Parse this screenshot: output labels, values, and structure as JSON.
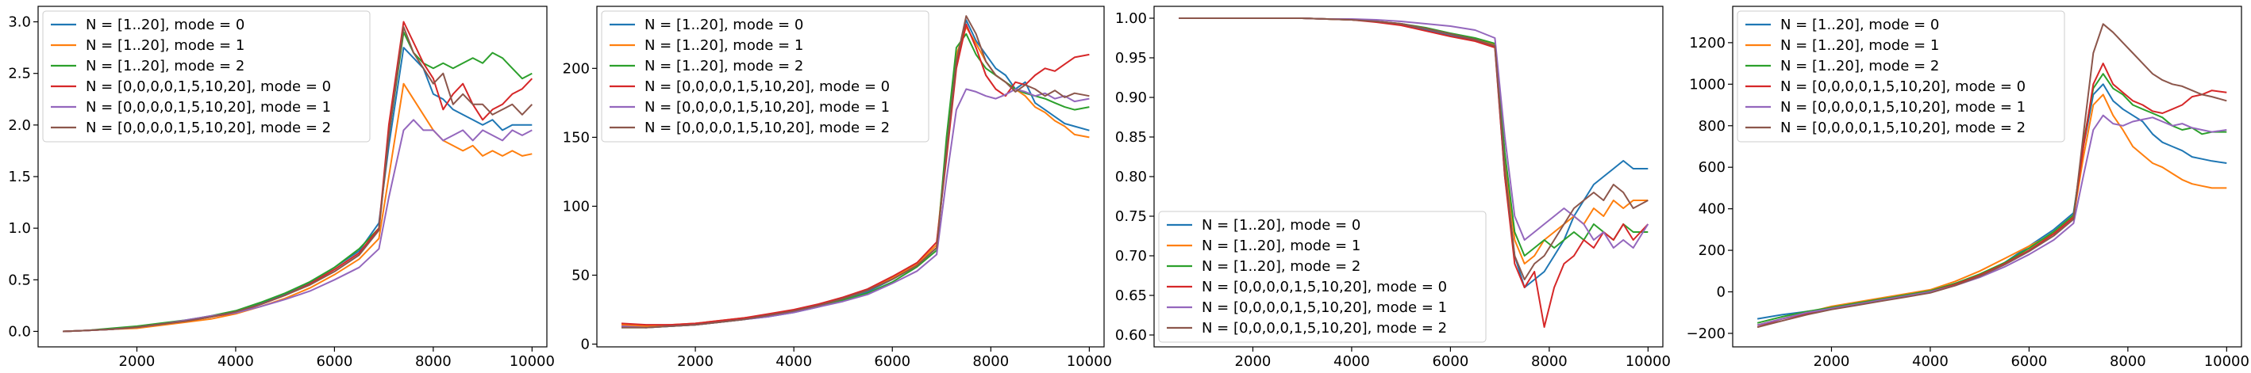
{
  "colors": [
    "#1f77b4",
    "#ff7f0e",
    "#2ca02c",
    "#d62728",
    "#9467bd",
    "#8c564b"
  ],
  "legend_labels": [
    "N = [1..20], mode = 0",
    "N = [1..20], mode = 1",
    "N = [1..20], mode = 2",
    "N = [0,0,0,0,1,5,10,20], mode = 0",
    "N = [0,0,0,0,1,5,10,20], mode = 1",
    "N = [0,0,0,0,1,5,10,20], mode = 2"
  ],
  "chart_data": [
    {
      "type": "line",
      "title": "",
      "xlabel": "",
      "ylabel": "",
      "xlim": [
        0,
        10300
      ],
      "ylim": [
        -0.15,
        3.15
      ],
      "xticks": [
        2000,
        4000,
        6000,
        8000,
        10000
      ],
      "yticks": [
        0.0,
        0.5,
        1.0,
        1.5,
        2.0,
        2.5,
        3.0
      ],
      "ytick_labels": [
        "0.0",
        "0.5",
        "1.0",
        "1.5",
        "2.0",
        "2.5",
        "3.0"
      ],
      "legend_position": "top-left",
      "grid": false,
      "x": [
        500,
        1000,
        1500,
        2000,
        2500,
        3000,
        3500,
        4000,
        4500,
        5000,
        5500,
        6000,
        6500,
        6900,
        7100,
        7400,
        7600,
        7800,
        8000,
        8200,
        8400,
        8600,
        8800,
        9000,
        9200,
        9400,
        9600,
        9800,
        10000
      ],
      "series": [
        {
          "name": "N = [1..20], mode = 0",
          "values": [
            0.0,
            0.01,
            0.02,
            0.04,
            0.07,
            0.1,
            0.14,
            0.19,
            0.27,
            0.36,
            0.47,
            0.62,
            0.78,
            1.05,
            1.8,
            2.75,
            2.65,
            2.55,
            2.3,
            2.25,
            2.15,
            2.1,
            2.05,
            2.0,
            2.05,
            1.95,
            2.0,
            2.0,
            2.0
          ]
        },
        {
          "name": "N = [1..20], mode = 1",
          "values": [
            0.0,
            0.01,
            0.02,
            0.03,
            0.06,
            0.09,
            0.12,
            0.17,
            0.24,
            0.32,
            0.42,
            0.55,
            0.7,
            0.9,
            1.5,
            2.4,
            2.25,
            2.1,
            1.95,
            1.85,
            1.8,
            1.75,
            1.8,
            1.7,
            1.75,
            1.7,
            1.75,
            1.7,
            1.72
          ]
        },
        {
          "name": "N = [1..20], mode = 2",
          "values": [
            0.0,
            0.01,
            0.03,
            0.05,
            0.08,
            0.11,
            0.15,
            0.2,
            0.28,
            0.37,
            0.48,
            0.62,
            0.8,
            1.0,
            1.9,
            2.9,
            2.7,
            2.6,
            2.55,
            2.6,
            2.55,
            2.6,
            2.65,
            2.6,
            2.7,
            2.65,
            2.55,
            2.45,
            2.5
          ]
        },
        {
          "name": "N = [0,0,0,0,1,5,10,20], mode = 0",
          "values": [
            0.0,
            0.01,
            0.02,
            0.04,
            0.07,
            0.1,
            0.14,
            0.18,
            0.26,
            0.35,
            0.46,
            0.6,
            0.76,
            1.0,
            2.0,
            3.0,
            2.8,
            2.6,
            2.45,
            2.15,
            2.3,
            2.4,
            2.2,
            2.05,
            2.15,
            2.2,
            2.3,
            2.35,
            2.45
          ]
        },
        {
          "name": "N = [0,0,0,0,1,5,10,20], mode = 1",
          "values": [
            0.0,
            0.01,
            0.02,
            0.04,
            0.07,
            0.11,
            0.15,
            0.18,
            0.24,
            0.31,
            0.39,
            0.5,
            0.62,
            0.8,
            1.3,
            1.95,
            2.05,
            1.95,
            1.95,
            1.85,
            1.9,
            1.95,
            1.85,
            1.95,
            1.9,
            1.85,
            1.95,
            1.9,
            1.95
          ]
        },
        {
          "name": "N = [0,0,0,0,1,5,10,20], mode = 2",
          "values": [
            0.0,
            0.01,
            0.02,
            0.04,
            0.07,
            0.1,
            0.14,
            0.19,
            0.26,
            0.35,
            0.45,
            0.58,
            0.74,
            0.98,
            1.9,
            2.95,
            2.7,
            2.55,
            2.4,
            2.5,
            2.2,
            2.3,
            2.2,
            2.2,
            2.1,
            2.15,
            2.2,
            2.1,
            2.2
          ]
        }
      ]
    },
    {
      "type": "line",
      "title": "",
      "xlabel": "",
      "ylabel": "",
      "xlim": [
        0,
        10300
      ],
      "ylim": [
        -2,
        245
      ],
      "xticks": [
        2000,
        4000,
        6000,
        8000,
        10000
      ],
      "yticks": [
        0,
        50,
        100,
        150,
        200
      ],
      "ytick_labels": [
        "0",
        "50",
        "100",
        "150",
        "200"
      ],
      "legend_position": "top-left",
      "grid": false,
      "x": [
        500,
        1000,
        1500,
        2000,
        2500,
        3000,
        3500,
        4000,
        4500,
        5000,
        5500,
        6000,
        6500,
        6900,
        7100,
        7300,
        7500,
        7700,
        7900,
        8100,
        8300,
        8500,
        8700,
        8900,
        9100,
        9300,
        9500,
        9700,
        10000
      ],
      "series": [
        {
          "name": "N = [1..20], mode = 0",
          "values": [
            13,
            12,
            13,
            14,
            16,
            18,
            20,
            23,
            27,
            32,
            38,
            47,
            57,
            70,
            140,
            205,
            235,
            220,
            210,
            200,
            195,
            185,
            190,
            175,
            170,
            165,
            160,
            158,
            155
          ]
        },
        {
          "name": "N = [1..20], mode = 1",
          "values": [
            14,
            13,
            14,
            15,
            17,
            19,
            21,
            24,
            28,
            33,
            39,
            48,
            58,
            72,
            145,
            210,
            230,
            218,
            205,
            195,
            190,
            185,
            180,
            172,
            168,
            162,
            158,
            152,
            150
          ]
        },
        {
          "name": "N = [1..20], mode = 2",
          "values": [
            12,
            12,
            13,
            14,
            16,
            18,
            21,
            24,
            28,
            32,
            37,
            45,
            56,
            68,
            150,
            215,
            225,
            210,
            200,
            195,
            190,
            185,
            182,
            180,
            178,
            175,
            172,
            170,
            172
          ]
        },
        {
          "name": "N = [0,0,0,0,1,5,10,20], mode = 0",
          "values": [
            15,
            14,
            14,
            15,
            17,
            19,
            22,
            25,
            29,
            34,
            40,
            49,
            59,
            74,
            135,
            200,
            232,
            215,
            195,
            185,
            180,
            190,
            188,
            195,
            200,
            198,
            203,
            208,
            210
          ]
        },
        {
          "name": "N = [0,0,0,0,1,5,10,20], mode = 1",
          "values": [
            13,
            12,
            13,
            14,
            16,
            18,
            20,
            23,
            27,
            31,
            36,
            44,
            53,
            65,
            120,
            170,
            185,
            183,
            180,
            178,
            181,
            185,
            183,
            180,
            182,
            178,
            180,
            176,
            178
          ]
        },
        {
          "name": "N = [0,0,0,0,1,5,10,20], mode = 2",
          "values": [
            12,
            12,
            13,
            14,
            16,
            18,
            21,
            24,
            28,
            33,
            39,
            47,
            57,
            70,
            140,
            205,
            238,
            225,
            205,
            195,
            190,
            183,
            188,
            185,
            180,
            184,
            179,
            182,
            180
          ]
        }
      ]
    },
    {
      "type": "line",
      "title": "",
      "xlabel": "",
      "ylabel": "",
      "xlim": [
        0,
        10300
      ],
      "ylim": [
        0.585,
        1.015
      ],
      "xticks": [
        2000,
        4000,
        6000,
        8000,
        10000
      ],
      "yticks": [
        0.6,
        0.65,
        0.7,
        0.75,
        0.8,
        0.85,
        0.9,
        0.95,
        1.0
      ],
      "ytick_labels": [
        "0.60",
        "0.65",
        "0.70",
        "0.75",
        "0.80",
        "0.85",
        "0.90",
        "0.95",
        "1.00"
      ],
      "legend_position": "bottom-left",
      "grid": false,
      "x": [
        500,
        1000,
        1500,
        2000,
        2500,
        3000,
        3500,
        4000,
        4500,
        5000,
        5500,
        6000,
        6500,
        6900,
        7100,
        7300,
        7500,
        7700,
        7900,
        8100,
        8300,
        8500,
        8700,
        8900,
        9100,
        9300,
        9500,
        9700,
        10000
      ],
      "series": [
        {
          "name": "N = [1..20], mode = 0",
          "values": [
            1.0,
            1.0,
            1.0,
            1.0,
            1.0,
            1.0,
            0.999,
            0.998,
            0.996,
            0.992,
            0.985,
            0.978,
            0.972,
            0.965,
            0.8,
            0.7,
            0.66,
            0.67,
            0.68,
            0.7,
            0.72,
            0.75,
            0.77,
            0.79,
            0.8,
            0.81,
            0.82,
            0.81,
            0.81
          ]
        },
        {
          "name": "N = [1..20], mode = 1",
          "values": [
            1.0,
            1.0,
            1.0,
            1.0,
            1.0,
            1.0,
            0.999,
            0.998,
            0.996,
            0.993,
            0.987,
            0.98,
            0.974,
            0.967,
            0.82,
            0.72,
            0.69,
            0.7,
            0.72,
            0.73,
            0.74,
            0.75,
            0.74,
            0.76,
            0.75,
            0.77,
            0.76,
            0.77,
            0.77
          ]
        },
        {
          "name": "N = [1..20], mode = 2",
          "values": [
            1.0,
            1.0,
            1.0,
            1.0,
            1.0,
            1.0,
            0.999,
            0.998,
            0.996,
            0.993,
            0.988,
            0.981,
            0.975,
            0.968,
            0.83,
            0.73,
            0.7,
            0.71,
            0.72,
            0.71,
            0.72,
            0.73,
            0.72,
            0.74,
            0.73,
            0.72,
            0.74,
            0.73,
            0.73
          ]
        },
        {
          "name": "N = [0,0,0,0,1,5,10,20], mode = 0",
          "values": [
            1.0,
            1.0,
            1.0,
            1.0,
            1.0,
            1.0,
            0.999,
            0.998,
            0.995,
            0.991,
            0.984,
            0.977,
            0.971,
            0.963,
            0.8,
            0.69,
            0.66,
            0.68,
            0.61,
            0.66,
            0.69,
            0.7,
            0.72,
            0.71,
            0.73,
            0.72,
            0.74,
            0.72,
            0.74
          ]
        },
        {
          "name": "N = [0,0,0,0,1,5,10,20], mode = 1",
          "values": [
            1.0,
            1.0,
            1.0,
            1.0,
            1.0,
            1.0,
            0.999,
            0.999,
            0.998,
            0.996,
            0.993,
            0.99,
            0.985,
            0.975,
            0.85,
            0.75,
            0.72,
            0.73,
            0.74,
            0.75,
            0.76,
            0.75,
            0.74,
            0.72,
            0.73,
            0.71,
            0.72,
            0.71,
            0.74
          ]
        },
        {
          "name": "N = [0,0,0,0,1,5,10,20], mode = 2",
          "values": [
            1.0,
            1.0,
            1.0,
            1.0,
            1.0,
            1.0,
            0.999,
            0.998,
            0.996,
            0.993,
            0.987,
            0.98,
            0.973,
            0.965,
            0.81,
            0.7,
            0.67,
            0.69,
            0.7,
            0.72,
            0.74,
            0.76,
            0.77,
            0.78,
            0.77,
            0.79,
            0.78,
            0.76,
            0.77
          ]
        }
      ]
    },
    {
      "type": "line",
      "title": "",
      "xlabel": "",
      "ylabel": "",
      "xlim": [
        0,
        10300
      ],
      "ylim": [
        -265,
        1375
      ],
      "xticks": [
        2000,
        4000,
        6000,
        8000,
        10000
      ],
      "yticks": [
        -200,
        0,
        200,
        400,
        600,
        800,
        1000,
        1200
      ],
      "ytick_labels": [
        "−200",
        "0",
        "200",
        "400",
        "600",
        "800",
        "1000",
        "1200"
      ],
      "legend_position": "top-left",
      "grid": false,
      "x": [
        500,
        1000,
        1500,
        2000,
        2500,
        3000,
        3500,
        4000,
        4500,
        5000,
        5500,
        6000,
        6500,
        6900,
        7100,
        7300,
        7500,
        7700,
        7900,
        8100,
        8300,
        8500,
        8700,
        8900,
        9100,
        9300,
        9500,
        9700,
        10000
      ],
      "series": [
        {
          "name": "N = [1..20], mode = 0",
          "values": [
            -130,
            -110,
            -95,
            -80,
            -60,
            -40,
            -20,
            0,
            40,
            80,
            140,
            220,
            300,
            380,
            700,
            950,
            1000,
            920,
            880,
            850,
            820,
            760,
            720,
            700,
            680,
            650,
            640,
            630,
            620
          ]
        },
        {
          "name": "N = [1..20], mode = 1",
          "values": [
            -160,
            -130,
            -100,
            -70,
            -50,
            -30,
            -10,
            10,
            50,
            100,
            160,
            220,
            280,
            360,
            650,
            900,
            950,
            850,
            780,
            700,
            660,
            620,
            600,
            570,
            540,
            520,
            510,
            500,
            500
          ]
        },
        {
          "name": "N = [1..20], mode = 2",
          "values": [
            -150,
            -120,
            -95,
            -75,
            -55,
            -35,
            -15,
            5,
            40,
            85,
            140,
            210,
            290,
            370,
            720,
            980,
            1050,
            980,
            950,
            900,
            880,
            860,
            840,
            800,
            780,
            790,
            760,
            770,
            770
          ]
        },
        {
          "name": "N = [0,0,0,0,1,5,10,20], mode = 0",
          "values": [
            -170,
            -130,
            -105,
            -80,
            -60,
            -40,
            -20,
            0,
            35,
            80,
            135,
            200,
            280,
            360,
            700,
            1000,
            1100,
            1000,
            960,
            920,
            900,
            870,
            860,
            880,
            900,
            940,
            950,
            970,
            960
          ]
        },
        {
          "name": "N = [0,0,0,0,1,5,10,20], mode = 1",
          "values": [
            -160,
            -130,
            -100,
            -80,
            -60,
            -40,
            -20,
            0,
            30,
            70,
            120,
            180,
            250,
            330,
            560,
            780,
            850,
            810,
            800,
            820,
            830,
            840,
            820,
            800,
            810,
            790,
            780,
            770,
            780
          ]
        },
        {
          "name": "N = [0,0,0,0,1,5,10,20], mode = 2",
          "values": [
            -170,
            -140,
            -110,
            -85,
            -65,
            -45,
            -25,
            -5,
            30,
            75,
            130,
            195,
            270,
            350,
            760,
            1150,
            1290,
            1250,
            1200,
            1150,
            1100,
            1050,
            1020,
            1000,
            990,
            970,
            950,
            940,
            920
          ]
        }
      ]
    }
  ]
}
